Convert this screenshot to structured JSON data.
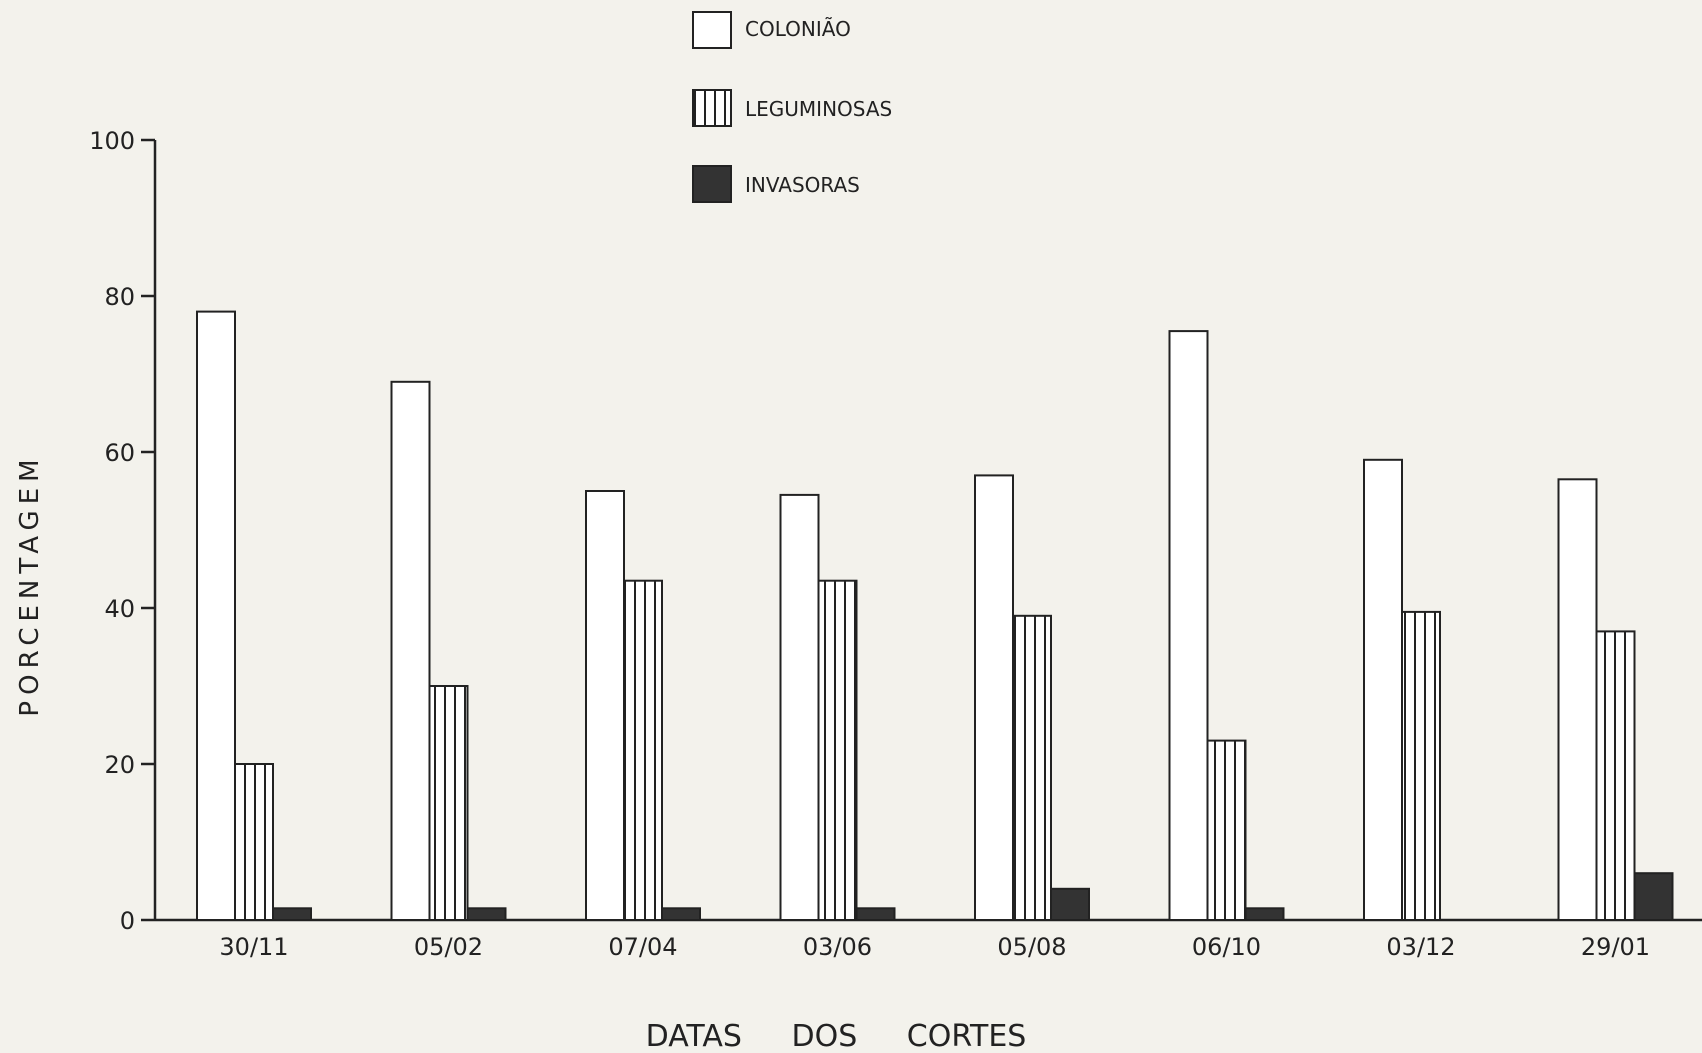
{
  "chart_data": {
    "type": "bar",
    "categories": [
      "30/11",
      "05/02",
      "07/04",
      "03/06",
      "05/08",
      "06/10",
      "03/12",
      "29/01"
    ],
    "series": [
      {
        "name": "COLONIÃO",
        "pattern": "empty",
        "values": [
          78,
          69,
          55,
          54.5,
          57,
          75.5,
          59,
          56.5
        ]
      },
      {
        "name": "LEGUMINOSAS",
        "pattern": "vertical-stripes",
        "values": [
          20,
          30,
          43.5,
          43.5,
          39,
          23,
          39.5,
          37
        ]
      },
      {
        "name": "INVASORAS",
        "pattern": "solid",
        "values": [
          1.5,
          1.5,
          1.5,
          1.5,
          4,
          1.5,
          0,
          6
        ]
      }
    ],
    "title": "",
    "xlabel": "DATAS DOS CORTES",
    "ylabel": "PORCENTAGEM",
    "ylim": [
      0,
      100
    ],
    "yticks": [
      0,
      20,
      40,
      60,
      80,
      100
    ],
    "grid": false,
    "legend_position": "top-center",
    "colors": {
      "background": "#f3f2ec",
      "ink": "#222222",
      "fill_empty": "#ffffff"
    }
  }
}
